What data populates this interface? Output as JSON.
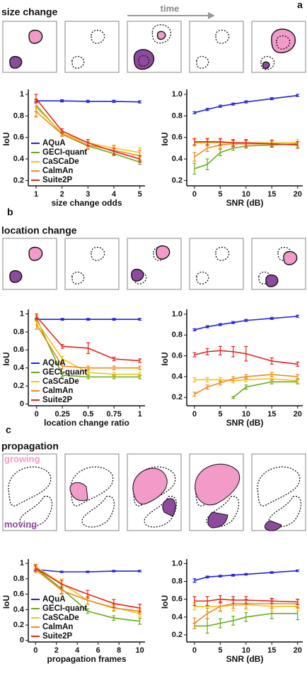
{
  "time_label": "time",
  "panels": [
    {
      "letter": "a",
      "title": "size change"
    },
    {
      "letter": "b",
      "title": "location change"
    },
    {
      "letter": "c",
      "title": "propagation",
      "annotations": [
        "growing",
        "moving"
      ]
    }
  ],
  "chart_data": [
    {
      "type": "line",
      "y_label": "IoU",
      "x_label": "size change odds",
      "x": [
        1,
        2,
        3,
        4,
        5
      ],
      "xlim": [
        0.7,
        5.2
      ],
      "xticks": [
        1,
        2,
        3,
        4,
        5
      ],
      "ylim": [
        0.15,
        1.02
      ],
      "yticks": [
        0.2,
        0.4,
        0.6,
        0.8,
        1
      ],
      "legend": "lower left",
      "series": [
        {
          "name": "AQuA",
          "color": "#2323e0",
          "values": [
            0.94,
            0.94,
            0.935,
            0.935,
            0.93
          ],
          "errors": [
            0.01,
            0.01,
            0.01,
            0.01,
            0.01
          ]
        },
        {
          "name": "GECI-quant",
          "color": "#6aaa1e",
          "values": [
            0.9,
            0.63,
            0.52,
            0.45,
            0.37
          ],
          "errors": [
            0.06,
            0.02,
            0.03,
            0.02,
            0.02
          ]
        },
        {
          "name": "CaSCaDe",
          "color": "#f2c31a",
          "values": [
            0.88,
            0.64,
            0.55,
            0.5,
            0.46
          ],
          "errors": [
            0.08,
            0.02,
            0.03,
            0.03,
            0.04
          ]
        },
        {
          "name": "CalmAn",
          "color": "#f0891c",
          "values": [
            0.84,
            0.63,
            0.53,
            0.48,
            0.43
          ],
          "errors": [
            0.05,
            0.02,
            0.03,
            0.04,
            0.05
          ]
        },
        {
          "name": "Suite2P",
          "color": "#e5231b",
          "values": [
            0.96,
            0.66,
            0.55,
            0.47,
            0.4
          ],
          "errors": [
            0.04,
            0.02,
            0.03,
            0.03,
            0.03
          ]
        }
      ]
    },
    {
      "type": "line",
      "y_label": "IoU",
      "x_label": "SNR (dB)",
      "x": [
        0,
        2.5,
        5,
        7.5,
        10,
        15,
        20
      ],
      "xlim": [
        -1.5,
        21
      ],
      "xticks": [
        0,
        5,
        10,
        15,
        20
      ],
      "ylim": [
        0.15,
        1.02
      ],
      "yticks": [
        0.2,
        0.4,
        0.6,
        0.8,
        {
          "value": 1,
          "label": "1.0"
        }
      ],
      "series": [
        {
          "color": "#2323e0",
          "values": [
            0.83,
            0.86,
            0.89,
            0.91,
            0.93,
            0.96,
            0.99
          ],
          "errors": [
            0.01,
            0.01,
            0.01,
            0.01,
            0.01,
            0.01,
            0.01
          ]
        },
        {
          "color": "#6aaa1e",
          "values": [
            0.31,
            0.35,
            0.46,
            0.5,
            0.52,
            0.53,
            0.54
          ],
          "errors": [
            0.05,
            0.05,
            0.03,
            0.02,
            0.02,
            0.02,
            0.02
          ]
        },
        {
          "color": "#f2c31a",
          "values": [
            0.55,
            0.55,
            0.55,
            0.55,
            0.55,
            0.55,
            0.55
          ],
          "errors": [
            0.03,
            0.03,
            0.03,
            0.03,
            0.03,
            0.03,
            0.03
          ]
        },
        {
          "color": "#f0891c",
          "values": [
            0.42,
            0.5,
            0.53,
            0.54,
            0.54,
            0.54,
            0.53
          ],
          "errors": [
            0.04,
            0.03,
            0.03,
            0.03,
            0.03,
            0.03,
            0.03
          ]
        },
        {
          "color": "#e5231b",
          "values": [
            0.56,
            0.56,
            0.56,
            0.55,
            0.55,
            0.54,
            0.53
          ],
          "errors": [
            0.03,
            0.03,
            0.03,
            0.03,
            0.03,
            0.03,
            0.03
          ]
        }
      ]
    },
    {
      "type": "line",
      "y_label": "IoU",
      "x_label": "location change ratio",
      "x": [
        0,
        0.25,
        0.5,
        0.75,
        1
      ],
      "xlim": [
        -0.08,
        1.05
      ],
      "xticks": [
        0,
        0.25,
        0.5,
        0.75,
        1
      ],
      "ylim": [
        -0.02,
        1.02
      ],
      "yticks": [
        0,
        0.2,
        0.4,
        0.6,
        0.8,
        1
      ],
      "legend": "lower left",
      "series": [
        {
          "name": "AQuA",
          "color": "#2323e0",
          "values": [
            0.94,
            0.94,
            0.94,
            0.94,
            0.94
          ],
          "errors": [
            0.01,
            0.01,
            0.01,
            0.01,
            0.01
          ]
        },
        {
          "name": "GECI-quant",
          "color": "#6aaa1e",
          "values": [
            0.95,
            0.32,
            0.3,
            0.3,
            0.3
          ],
          "errors": [
            0.03,
            0.02,
            0.02,
            0.02,
            0.02
          ]
        },
        {
          "name": "CaSCaDe",
          "color": "#f2c31a",
          "values": [
            0.92,
            0.5,
            0.35,
            0.33,
            0.33
          ],
          "errors": [
            0.04,
            0.03,
            0.02,
            0.02,
            0.02
          ]
        },
        {
          "name": "CalmAn",
          "color": "#f0891c",
          "values": [
            0.88,
            0.42,
            0.4,
            0.4,
            0.4
          ],
          "errors": [
            0.05,
            0.03,
            0.02,
            0.02,
            0.02
          ]
        },
        {
          "name": "Suite2P",
          "color": "#e5231b",
          "values": [
            0.97,
            0.64,
            0.62,
            0.5,
            0.48
          ],
          "errors": [
            0.03,
            0.02,
            0.06,
            0.02,
            0.02
          ]
        }
      ]
    },
    {
      "type": "line",
      "y_label": "IoU",
      "x_label": "SNR (dB)",
      "x": [
        0,
        2.5,
        5,
        7.5,
        10,
        15,
        20
      ],
      "xlim": [
        -1.5,
        21
      ],
      "xticks": [
        0,
        5,
        10,
        15,
        20
      ],
      "ylim": [
        0.12,
        1.02
      ],
      "yticks": [
        0.2,
        0.4,
        0.6,
        0.8,
        {
          "value": 1,
          "label": "1.0"
        }
      ],
      "series": [
        {
          "color": "#2323e0",
          "values": [
            0.85,
            0.88,
            0.9,
            0.92,
            0.94,
            0.96,
            0.98
          ],
          "errors": [
            0.01,
            0.01,
            0.01,
            0.01,
            0.01,
            0.01,
            0.01
          ]
        },
        {
          "color": "#6aaa1e",
          "values": [
            null,
            null,
            null,
            0.2,
            0.3,
            0.35,
            0.35
          ],
          "errors": [
            null,
            null,
            null,
            0.01,
            0.02,
            0.02,
            0.02
          ]
        },
        {
          "color": "#f2c31a",
          "values": [
            0.37,
            0.37,
            0.37,
            0.36,
            0.37,
            0.38,
            0.36
          ],
          "errors": [
            0.02,
            0.02,
            0.02,
            0.02,
            0.02,
            0.02,
            0.02
          ]
        },
        {
          "color": "#f0891c",
          "values": [
            0.23,
            0.3,
            0.34,
            0.38,
            0.4,
            0.42,
            0.4
          ],
          "errors": [
            0.02,
            0.02,
            0.02,
            0.02,
            0.02,
            0.02,
            0.02
          ]
        },
        {
          "color": "#e5231b",
          "values": [
            0.61,
            0.64,
            0.65,
            0.64,
            0.62,
            0.55,
            0.52
          ],
          "errors": [
            0.02,
            0.03,
            0.04,
            0.05,
            0.07,
            0.03,
            0.02
          ]
        }
      ]
    },
    {
      "type": "line",
      "y_label": "IoU",
      "x_label": "propagation frames",
      "x": [
        0,
        2.5,
        5,
        7.5,
        10
      ],
      "xlim": [
        -0.7,
        10.5
      ],
      "xticks": [
        0,
        2,
        4,
        6,
        8,
        10
      ],
      "ylim": [
        -0.02,
        1.02
      ],
      "yticks": [
        0,
        0.2,
        0.4,
        0.6,
        0.8,
        1
      ],
      "legend": "lower left",
      "series": [
        {
          "name": "AQuA",
          "color": "#2323e0",
          "values": [
            0.92,
            0.89,
            0.89,
            0.9,
            0.9
          ],
          "errors": [
            0.01,
            0.01,
            0.01,
            0.01,
            0.01
          ]
        },
        {
          "name": "GECI-quant",
          "color": "#6aaa1e",
          "values": [
            0.94,
            0.67,
            0.38,
            0.29,
            0.25
          ],
          "errors": [
            0.04,
            0.06,
            0.03,
            0.03,
            0.04
          ]
        },
        {
          "name": "CaSCaDe",
          "color": "#f2c31a",
          "values": [
            0.96,
            0.74,
            0.52,
            0.43,
            0.35
          ],
          "errors": [
            0.03,
            0.06,
            0.05,
            0.04,
            0.04
          ]
        },
        {
          "name": "CalmAn",
          "color": "#f0891c",
          "values": [
            0.92,
            0.65,
            0.52,
            0.42,
            0.38
          ],
          "errors": [
            0.04,
            0.05,
            0.05,
            0.04,
            0.04
          ]
        },
        {
          "name": "Suite2P",
          "color": "#e5231b",
          "values": [
            0.94,
            0.73,
            0.6,
            0.48,
            0.42
          ],
          "errors": [
            0.04,
            0.05,
            0.05,
            0.05,
            0.05
          ]
        }
      ]
    },
    {
      "type": "line",
      "y_label": "IoU",
      "x_label": "SNR (dB)",
      "x": [
        0,
        2.5,
        5,
        7.5,
        10,
        15,
        20
      ],
      "xlim": [
        -1.5,
        21
      ],
      "xticks": [
        0,
        5,
        10,
        15,
        20
      ],
      "ylim": [
        0.12,
        1.02
      ],
      "yticks": [
        0.2,
        0.4,
        0.6,
        0.8,
        {
          "value": 1,
          "label": "1.0"
        }
      ],
      "series": [
        {
          "color": "#2323e0",
          "values": [
            0.81,
            0.85,
            0.86,
            0.87,
            0.88,
            0.9,
            0.92
          ],
          "errors": [
            0.02,
            0.01,
            0.01,
            0.01,
            0.01,
            0.01,
            0.01
          ]
        },
        {
          "color": "#6aaa1e",
          "values": [
            0.3,
            0.3,
            0.33,
            0.36,
            0.4,
            0.44,
            0.44
          ],
          "errors": [
            0.03,
            0.08,
            0.05,
            0.05,
            0.05,
            0.06,
            0.07
          ]
        },
        {
          "color": "#f2c31a",
          "values": [
            0.52,
            0.52,
            0.52,
            0.53,
            0.54,
            0.52,
            0.52
          ],
          "errors": [
            0.04,
            0.06,
            0.06,
            0.06,
            0.06,
            0.05,
            0.05
          ]
        },
        {
          "color": "#f0891c",
          "values": [
            0.33,
            0.44,
            0.52,
            0.55,
            0.55,
            0.55,
            0.55
          ],
          "errors": [
            0.06,
            0.06,
            0.05,
            0.05,
            0.05,
            0.05,
            0.05
          ]
        },
        {
          "color": "#e5231b",
          "values": [
            0.58,
            0.58,
            0.6,
            0.59,
            0.59,
            0.58,
            0.57
          ],
          "errors": [
            0.05,
            0.05,
            0.04,
            0.04,
            0.04,
            0.03,
            0.03
          ]
        }
      ]
    }
  ]
}
